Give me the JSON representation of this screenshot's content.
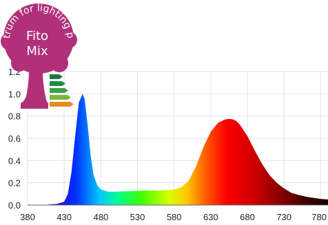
{
  "logo": {
    "arc_text": "Spectrum for lighting plants",
    "line1": "Fito",
    "line2": "Mix",
    "tree_color": "#b0307a",
    "bar_colors": [
      "#1b7a3e",
      "#1f8c4a",
      "#3aa04a",
      "#7ab83c",
      "#e98a22"
    ]
  },
  "chart_data": {
    "type": "area",
    "title": "",
    "xlabel": "",
    "ylabel": "",
    "xlim": [
      380,
      790
    ],
    "ylim": [
      0,
      1.2
    ],
    "x_ticks": [
      "380",
      "430",
      "480",
      "530",
      "580",
      "630",
      "680",
      "730",
      "780"
    ],
    "y_ticks": [
      "0.0",
      "0.2",
      "0.4",
      "0.6",
      "0.8",
      "1.0",
      "1.2"
    ],
    "grid": true,
    "series": [
      {
        "x": [
          380,
          400,
          420,
          430,
          435,
          440,
          445,
          450,
          455,
          458,
          462,
          466,
          470,
          475,
          480,
          490,
          500,
          520,
          540,
          560,
          580,
          590,
          600,
          610,
          620,
          630,
          640,
          650,
          655,
          660,
          665,
          670,
          680,
          690,
          700,
          710,
          720,
          730,
          740,
          750,
          760,
          770,
          780,
          790
        ],
        "y": [
          0.0,
          0.0,
          0.01,
          0.03,
          0.1,
          0.3,
          0.62,
          0.92,
          1.0,
          0.95,
          0.72,
          0.45,
          0.27,
          0.18,
          0.14,
          0.12,
          0.12,
          0.125,
          0.13,
          0.13,
          0.14,
          0.16,
          0.22,
          0.35,
          0.52,
          0.66,
          0.74,
          0.77,
          0.775,
          0.77,
          0.755,
          0.72,
          0.62,
          0.49,
          0.37,
          0.27,
          0.2,
          0.15,
          0.11,
          0.09,
          0.075,
          0.065,
          0.055,
          0.05
        ]
      }
    ]
  }
}
